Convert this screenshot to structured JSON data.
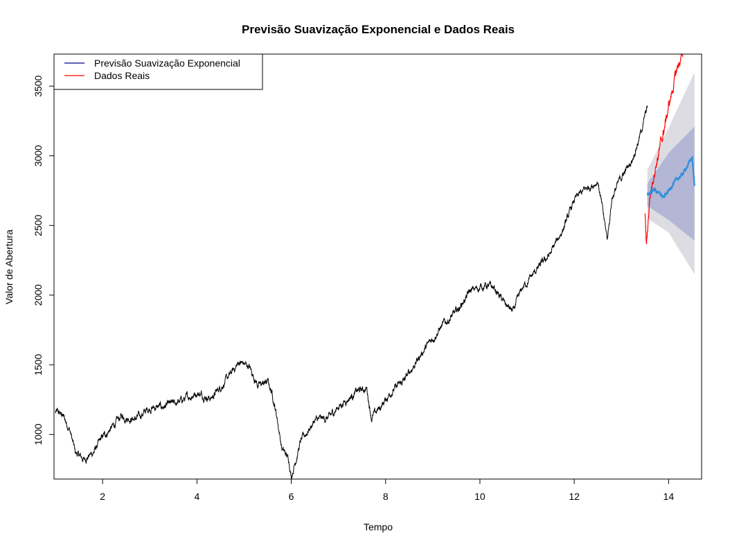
{
  "chart_data": {
    "type": "line",
    "title": "Previsão Suavização Exponencial e Dados Reais",
    "xlabel": "Tempo",
    "ylabel": "Valor de Abertura",
    "xlim": [
      0.97,
      14.7
    ],
    "ylim": [
      680,
      3730
    ],
    "x_ticks": [
      2,
      4,
      6,
      8,
      10,
      12,
      14
    ],
    "y_ticks": [
      1000,
      1500,
      2000,
      2500,
      3000,
      3500
    ],
    "legend_position": "top-left",
    "legend": [
      {
        "label": "Previsão Suavização Exponencial",
        "color": "#00008B"
      },
      {
        "label": "Dados Reais",
        "color": "#FF0000"
      }
    ],
    "colors": {
      "history": "#000000",
      "actual": "#FF0000",
      "forecast": "#2E8EDB",
      "band80": "#B3B6D4",
      "band95": "#DCDCE2"
    },
    "history_anchors": [
      [
        1.0,
        1160
      ],
      [
        1.15,
        1140
      ],
      [
        1.3,
        1040
      ],
      [
        1.42,
        870
      ],
      [
        1.6,
        820
      ],
      [
        1.8,
        870
      ],
      [
        2.0,
        980
      ],
      [
        2.2,
        1050
      ],
      [
        2.4,
        1130
      ],
      [
        2.7,
        1110
      ],
      [
        3.0,
        1190
      ],
      [
        3.3,
        1200
      ],
      [
        3.6,
        1230
      ],
      [
        4.0,
        1300
      ],
      [
        4.3,
        1260
      ],
      [
        4.6,
        1380
      ],
      [
        4.9,
        1520
      ],
      [
        5.1,
        1490
      ],
      [
        5.3,
        1350
      ],
      [
        5.5,
        1380
      ],
      [
        5.6,
        1290
      ],
      [
        5.7,
        1120
      ],
      [
        5.8,
        900
      ],
      [
        5.95,
        820
      ],
      [
        6.0,
        700
      ],
      [
        6.2,
        950
      ],
      [
        6.5,
        1100
      ],
      [
        6.8,
        1120
      ],
      [
        7.0,
        1200
      ],
      [
        7.4,
        1310
      ],
      [
        7.6,
        1330
      ],
      [
        7.7,
        1120
      ],
      [
        7.9,
        1200
      ],
      [
        8.1,
        1300
      ],
      [
        8.4,
        1390
      ],
      [
        8.8,
        1600
      ],
      [
        9.2,
        1780
      ],
      [
        9.5,
        1880
      ],
      [
        9.8,
        2030
      ],
      [
        10.1,
        2070
      ],
      [
        10.3,
        2050
      ],
      [
        10.5,
        1950
      ],
      [
        10.7,
        1880
      ],
      [
        10.9,
        2050
      ],
      [
        11.2,
        2180
      ],
      [
        11.5,
        2300
      ],
      [
        11.8,
        2500
      ],
      [
        12.0,
        2680
      ],
      [
        12.2,
        2750
      ],
      [
        12.5,
        2820
      ],
      [
        12.7,
        2400
      ],
      [
        12.8,
        2700
      ],
      [
        13.0,
        2850
      ],
      [
        13.2,
        2950
      ],
      [
        13.4,
        3150
      ],
      [
        13.55,
        3350
      ]
    ],
    "actual_anchors": [
      [
        13.5,
        2600
      ],
      [
        13.53,
        2350
      ],
      [
        13.6,
        2700
      ],
      [
        13.7,
        2900
      ],
      [
        13.85,
        3100
      ],
      [
        14.0,
        3350
      ],
      [
        14.1,
        3500
      ],
      [
        14.2,
        3650
      ],
      [
        14.3,
        3720
      ]
    ],
    "forecast_anchors": [
      [
        13.55,
        2720
      ],
      [
        13.7,
        2760
      ],
      [
        13.9,
        2700
      ],
      [
        14.1,
        2800
      ],
      [
        14.3,
        2870
      ],
      [
        14.45,
        2960
      ],
      [
        14.5,
        2990
      ],
      [
        14.55,
        2780
      ]
    ],
    "band80": {
      "x": [
        13.55,
        14.0,
        14.55
      ],
      "lower": [
        2640,
        2540,
        2390
      ],
      "upper": [
        2800,
        3020,
        3210
      ]
    },
    "band95": {
      "x": [
        13.55,
        14.0,
        14.55
      ],
      "lower": [
        2550,
        2450,
        2150
      ],
      "upper": [
        2900,
        3200,
        3600
      ]
    }
  }
}
